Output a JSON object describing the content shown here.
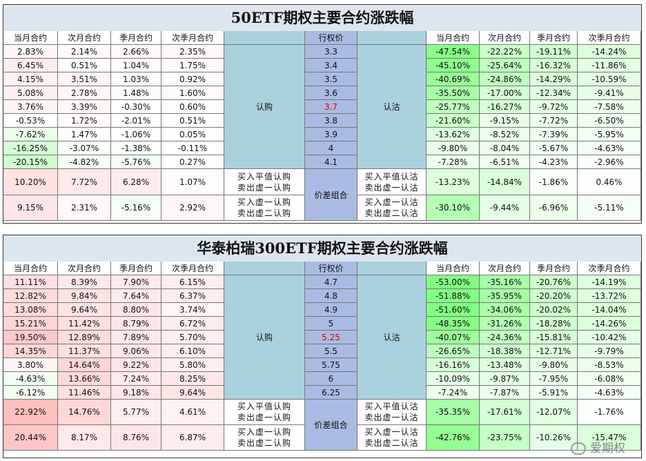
{
  "headers": {
    "months": [
      "当月合约",
      "次月合约",
      "季月合约",
      "次季月合约"
    ],
    "strike": "行权价"
  },
  "labels": {
    "call": "认购",
    "put": "认沽",
    "spread": "价差组合",
    "call_combo1": [
      "买入平值认购",
      "卖出虚一认购"
    ],
    "call_combo2": [
      "买入虚一认购",
      "卖出虚二认购"
    ],
    "put_combo1": [
      "买入平值认沽",
      "卖出虚一认沽"
    ],
    "put_combo2": [
      "买入虚一认沽",
      "卖出虚二认沽"
    ]
  },
  "watermark": "爱期权",
  "colors": {
    "atm_strike": "#e00000",
    "side_band": "#a9d2de",
    "strike_band": "#a9bbe3"
  },
  "tables": [
    {
      "title": "50ETF期权主要合约涨跌幅",
      "atm": "3.7",
      "rows": [
        {
          "strike": "3.3",
          "call": [
            "2.83%",
            "2.14%",
            "2.66%",
            "2.35%"
          ],
          "put": [
            "-47.54%",
            "-22.22%",
            "-19.11%",
            "-14.24%"
          ]
        },
        {
          "strike": "3.4",
          "call": [
            "6.45%",
            "0.51%",
            "1.04%",
            "1.75%"
          ],
          "put": [
            "-45.10%",
            "-25.64%",
            "-16.32%",
            "-11.86%"
          ]
        },
        {
          "strike": "3.5",
          "call": [
            "4.15%",
            "3.51%",
            "1.03%",
            "0.92%"
          ],
          "put": [
            "-40.69%",
            "-24.86%",
            "-14.29%",
            "-10.59%"
          ]
        },
        {
          "strike": "3.6",
          "call": [
            "5.08%",
            "2.78%",
            "1.48%",
            "1.60%"
          ],
          "put": [
            "-35.50%",
            "-17.00%",
            "-12.34%",
            "-9.41%"
          ]
        },
        {
          "strike": "3.7",
          "call": [
            "3.76%",
            "3.39%",
            "-0.30%",
            "0.60%"
          ],
          "put": [
            "-25.77%",
            "-16.27%",
            "-9.72%",
            "-7.58%"
          ]
        },
        {
          "strike": "3.8",
          "call": [
            "-0.53%",
            "1.72%",
            "-2.01%",
            "0.51%"
          ],
          "put": [
            "-21.60%",
            "-9.15%",
            "-7.72%",
            "-6.50%"
          ]
        },
        {
          "strike": "3.9",
          "call": [
            "-7.62%",
            "1.47%",
            "-1.06%",
            "0.05%"
          ],
          "put": [
            "-13.62%",
            "-8.52%",
            "-7.39%",
            "-5.95%"
          ]
        },
        {
          "strike": "4",
          "call": [
            "-16.25%",
            "-3.07%",
            "-1.38%",
            "-0.11%"
          ],
          "put": [
            "-9.80%",
            "-8.04%",
            "-5.67%",
            "-4.63%"
          ]
        },
        {
          "strike": "4.1",
          "call": [
            "-20.15%",
            "-4.82%",
            "-5.76%",
            "0.27%"
          ],
          "put": [
            "-7.28%",
            "-6.51%",
            "-4.23%",
            "-2.96%"
          ]
        }
      ],
      "combos": [
        {
          "call": [
            "10.20%",
            "7.72%",
            "6.28%",
            "1.07%"
          ],
          "put": [
            "-13.23%",
            "-14.84%",
            "-1.86%",
            "0.46%"
          ]
        },
        {
          "call": [
            "9.15%",
            "2.31%",
            "-5.16%",
            "2.92%"
          ],
          "put": [
            "-30.10%",
            "-9.44%",
            "-6.96%",
            "-5.11%"
          ]
        }
      ]
    },
    {
      "title": "华泰柏瑞300ETF期权主要合约涨跌幅",
      "atm": "5.25",
      "rows": [
        {
          "strike": "4.7",
          "call": [
            "11.11%",
            "8.39%",
            "7.90%",
            "6.15%"
          ],
          "put": [
            "-53.00%",
            "-35.16%",
            "-20.76%",
            "-14.19%"
          ]
        },
        {
          "strike": "4.8",
          "call": [
            "12.82%",
            "9.84%",
            "7.64%",
            "6.37%"
          ],
          "put": [
            "-51.88%",
            "-35.95%",
            "-20.20%",
            "-13.72%"
          ]
        },
        {
          "strike": "4.9",
          "call": [
            "13.08%",
            "9.64%",
            "8.80%",
            "3.74%"
          ],
          "put": [
            "-51.60%",
            "-34.06%",
            "-20.02%",
            "-14.04%"
          ]
        },
        {
          "strike": "5",
          "call": [
            "15.21%",
            "11.42%",
            "8.79%",
            "6.72%"
          ],
          "put": [
            "-48.35%",
            "-31.26%",
            "-18.28%",
            "-14.26%"
          ]
        },
        {
          "strike": "5.25",
          "call": [
            "19.50%",
            "12.89%",
            "7.89%",
            "5.70%"
          ],
          "put": [
            "-40.07%",
            "-24.36%",
            "-15.81%",
            "-10.42%"
          ]
        },
        {
          "strike": "5.5",
          "call": [
            "14.35%",
            "11.37%",
            "9.06%",
            "6.10%"
          ],
          "put": [
            "-26.65%",
            "-18.38%",
            "-12.71%",
            "-9.79%"
          ]
        },
        {
          "strike": "5.75",
          "call": [
            "3.80%",
            "14.64%",
            "9.22%",
            "5.80%"
          ],
          "put": [
            "-16.16%",
            "-13.48%",
            "-9.80%",
            "-8.53%"
          ]
        },
        {
          "strike": "6",
          "call": [
            "-4.63%",
            "13.66%",
            "7.24%",
            "8.25%"
          ],
          "put": [
            "-10.09%",
            "-9.87%",
            "-7.95%",
            "-6.08%"
          ]
        },
        {
          "strike": "6.25",
          "call": [
            "-6.12%",
            "11.46%",
            "9.18%",
            "9.64%"
          ],
          "put": [
            "-7.24%",
            "-7.87%",
            "-5.91%",
            "-4.63%"
          ]
        }
      ],
      "combos": [
        {
          "call": [
            "22.92%",
            "14.76%",
            "5.77%",
            "4.61%"
          ],
          "put": [
            "-35.35%",
            "-17.61%",
            "-12.07%",
            "-1.76%"
          ]
        },
        {
          "call": [
            "20.44%",
            "8.17%",
            "8.76%",
            "6.87%"
          ],
          "put": [
            "-42.76%",
            "-23.75%",
            "-10.26%",
            "-15.47%"
          ]
        }
      ]
    }
  ]
}
